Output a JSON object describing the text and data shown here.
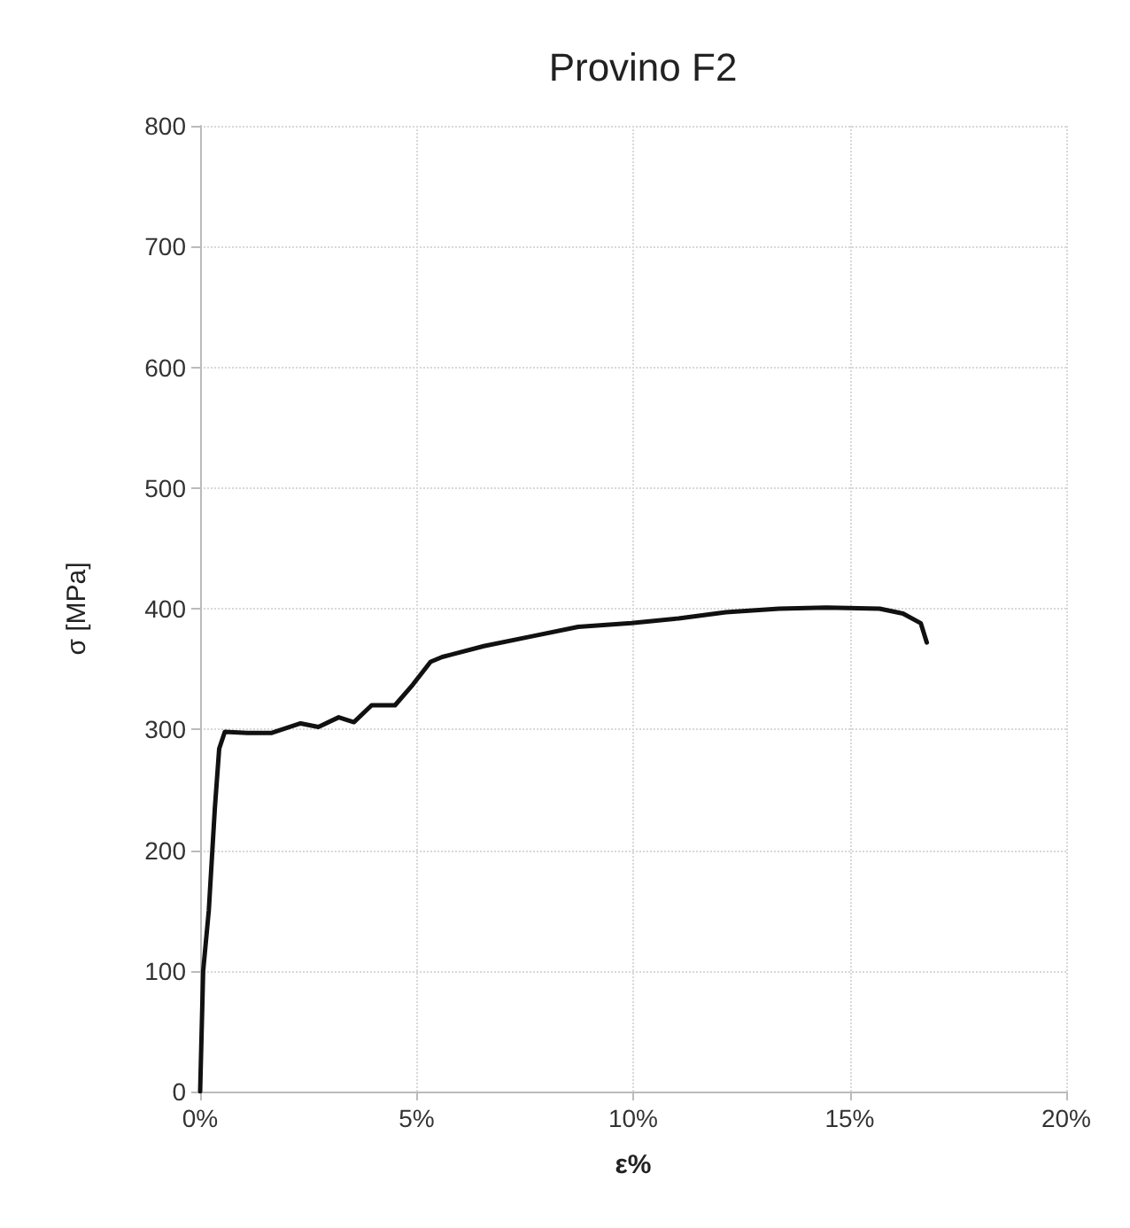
{
  "chart_data": {
    "type": "line",
    "title": "Provino F2",
    "xlabel": "ε%",
    "ylabel": "σ [MPa]",
    "x": [
      0,
      0.07,
      0.2,
      0.34,
      0.44,
      0.57,
      1.09,
      1.64,
      2.32,
      2.73,
      3.2,
      3.55,
      3.96,
      4.5,
      4.91,
      5.32,
      5.59,
      6.55,
      7.64,
      8.73,
      9.96,
      11.05,
      12.14,
      13.37,
      14.46,
      15.69,
      16.23,
      16.64,
      16.78
    ],
    "series": [
      {
        "color": "#111111",
        "values": [
          0,
          100,
          150,
          235,
          284,
          298,
          297,
          297,
          305,
          302,
          310,
          306,
          320,
          320,
          337,
          356,
          360,
          369,
          377,
          385,
          388,
          392,
          397,
          400,
          401,
          400,
          396,
          388,
          372
        ]
      }
    ],
    "xlim": [
      0,
      20
    ],
    "xticks": [
      {
        "value": 0,
        "label": "0%"
      },
      {
        "value": 5,
        "label": "5%"
      },
      {
        "value": 10,
        "label": "10%"
      },
      {
        "value": 15,
        "label": "15%"
      },
      {
        "value": 20,
        "label": "20%"
      }
    ],
    "ylim": [
      0,
      800
    ],
    "yticks": [
      0,
      100,
      200,
      300,
      400,
      500,
      600,
      700,
      800
    ],
    "grid": true,
    "marker": "none",
    "line_style": "solid"
  }
}
